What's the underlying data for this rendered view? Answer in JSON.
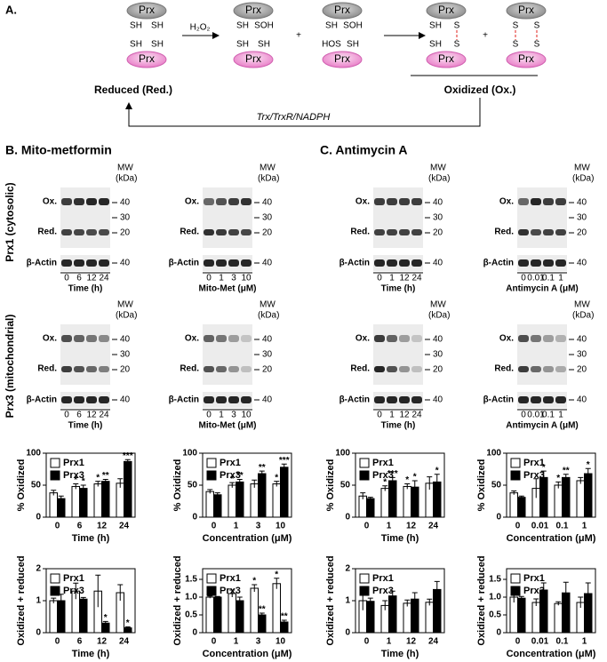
{
  "panel_a": {
    "label": "A.",
    "prx": "Prx",
    "sh": "SH",
    "soh": "SOH",
    "hos": "HOS",
    "s": "S",
    "plus": "+",
    "h2o2": "H₂O₂",
    "reduced": "Reduced (Red.)",
    "oxidized": "Oxidized (Ox.)",
    "recycling": "Trx/TrxR/NADPH"
  },
  "panel_b": {
    "title": "B. Mito-metformin"
  },
  "panel_c": {
    "title": "C. Antimycin A"
  },
  "row_labels": [
    "Prx1 (cytosolic)",
    "Prx3 (mitochondrial)"
  ],
  "blot_labels": {
    "mw": [
      "MW",
      "(kDa)"
    ],
    "ox": "Ox.",
    "red": "Red.",
    "actin": "β-Actin",
    "mw_markers": [
      "40",
      "30",
      "20",
      "40"
    ]
  },
  "blots": [
    {
      "lanes": [
        "0",
        "6",
        "12",
        "24"
      ],
      "xlabel": "Time (h)"
    },
    {
      "lanes": [
        "0",
        "1",
        "3",
        "10"
      ],
      "xlabel": "Mito-Met (μM)"
    },
    {
      "lanes": [
        "0",
        "1",
        "12",
        "24"
      ],
      "xlabel": "Time (h)"
    },
    {
      "lanes": [
        "0",
        "0.01",
        "0.1",
        "1"
      ],
      "xlabel": "Antimycin A (μM)"
    }
  ],
  "chart_data": [
    {
      "type": "bar",
      "ylabel": "% Oxidized",
      "xlabel": "Time (h)",
      "categories": [
        "0",
        "6",
        "12",
        "24"
      ],
      "ylim": [
        0,
        100
      ],
      "yticks": [
        0,
        50,
        100
      ],
      "series": [
        {
          "name": "Prx1",
          "color": "#ffffff",
          "values": [
            38,
            48,
            52,
            53
          ],
          "errors": [
            4,
            4,
            4,
            7
          ],
          "significance": [
            null,
            "*",
            "*",
            null
          ]
        },
        {
          "name": "Prx3",
          "color": "#000000",
          "values": [
            29,
            45,
            56,
            87
          ],
          "errors": [
            4,
            5,
            3,
            3
          ],
          "significance": [
            null,
            "*",
            "**",
            "***"
          ]
        }
      ]
    },
    {
      "type": "bar",
      "ylabel": "% Oxidized",
      "xlabel": "Concentration (μM)",
      "categories": [
        "0",
        "1",
        "3",
        "10"
      ],
      "ylim": [
        0,
        100
      ],
      "yticks": [
        0,
        50,
        100
      ],
      "series": [
        {
          "name": "Prx1",
          "color": "#ffffff",
          "values": [
            40,
            50,
            52,
            52
          ],
          "errors": [
            3,
            4,
            6,
            4
          ],
          "significance": [
            null,
            "*",
            null,
            "*"
          ]
        },
        {
          "name": "Prx3",
          "color": "#000000",
          "values": [
            35,
            55,
            68,
            78
          ],
          "errors": [
            3,
            4,
            4,
            5
          ],
          "significance": [
            null,
            "**",
            "**",
            "***"
          ]
        }
      ]
    },
    {
      "type": "bar",
      "ylabel": "Oxidized + reduced",
      "xlabel": "Time (h)",
      "categories": [
        "0",
        "6",
        "12",
        "24"
      ],
      "ylim": [
        0,
        2
      ],
      "yticks": [
        0,
        1,
        2
      ],
      "series": [
        {
          "name": "Prx1",
          "color": "#ffffff",
          "values": [
            1.0,
            1.3,
            1.3,
            1.25
          ],
          "errors": [
            0.08,
            0.25,
            0.5,
            0.25
          ],
          "significance": [
            null,
            null,
            null,
            null
          ]
        },
        {
          "name": "Prx3",
          "color": "#000000",
          "values": [
            1.0,
            1.05,
            0.3,
            0.15
          ],
          "errors": [
            0.2,
            0.05,
            0.05,
            0.03
          ],
          "significance": [
            null,
            null,
            "*",
            "*"
          ]
        }
      ]
    },
    {
      "type": "bar",
      "ylabel": "Oxidized + reduced",
      "xlabel": "Concentration (μM)",
      "categories": [
        "0",
        "1",
        "3",
        "10"
      ],
      "ylim": [
        0,
        1.8
      ],
      "yticks": [
        0,
        0.5,
        {
          "value": 1,
          "label": "1.0"
        },
        1.5
      ],
      "series": [
        {
          "name": "Prx1",
          "color": "#ffffff",
          "values": [
            1.0,
            1.1,
            1.25,
            1.38
          ],
          "errors": [
            0.03,
            0.1,
            0.1,
            0.15
          ],
          "significance": [
            null,
            null,
            "*",
            "*"
          ]
        },
        {
          "name": "Prx3",
          "color": "#000000",
          "values": [
            1.0,
            0.9,
            0.5,
            0.3
          ],
          "errors": [
            0.02,
            0.1,
            0.05,
            0.05
          ],
          "significance": [
            null,
            null,
            "**",
            "**"
          ]
        }
      ]
    },
    {
      "type": "bar",
      "ylabel": "% Oxidized",
      "xlabel": "Time (h)",
      "categories": [
        "0",
        "1",
        "12",
        "24"
      ],
      "ylim": [
        0,
        100
      ],
      "yticks": [
        0,
        50,
        100
      ],
      "series": [
        {
          "name": "Prx1",
          "color": "#ffffff",
          "values": [
            33,
            45,
            48,
            53
          ],
          "errors": [
            5,
            4,
            4,
            10
          ],
          "significance": [
            null,
            "*",
            "*",
            null
          ]
        },
        {
          "name": "Prx3",
          "color": "#000000",
          "values": [
            29,
            57,
            47,
            55
          ],
          "errors": [
            2,
            5,
            10,
            12
          ],
          "significance": [
            null,
            "***",
            "*",
            "*"
          ]
        }
      ]
    },
    {
      "type": "bar",
      "ylabel": "% Oxidized",
      "xlabel": "Concentration (μM)",
      "categories": [
        "0",
        "0.01",
        "0.1",
        "1"
      ],
      "ylim": [
        0,
        100
      ],
      "yticks": [
        0,
        50,
        100
      ],
      "series": [
        {
          "name": "Prx1",
          "color": "#ffffff",
          "values": [
            38,
            45,
            50,
            57
          ],
          "errors": [
            3,
            15,
            5,
            5
          ],
          "significance": [
            null,
            null,
            "*",
            null
          ]
        },
        {
          "name": "Prx3",
          "color": "#000000",
          "values": [
            31,
            62,
            62,
            68
          ],
          "errors": [
            2,
            10,
            5,
            8
          ],
          "significance": [
            null,
            "*",
            "**",
            "*"
          ]
        }
      ]
    },
    {
      "type": "bar",
      "ylabel": "Oxidized + reduced",
      "xlabel": "Time (h)",
      "categories": [
        "0",
        "1",
        "12",
        "24"
      ],
      "ylim": [
        0,
        2
      ],
      "yticks": [
        0,
        1,
        2
      ],
      "series": [
        {
          "name": "Prx1",
          "color": "#ffffff",
          "values": [
            1.0,
            0.85,
            0.92,
            0.95
          ],
          "errors": [
            0.3,
            0.15,
            0.1,
            0.1
          ],
          "significance": [
            null,
            null,
            null,
            null
          ]
        },
        {
          "name": "Prx3",
          "color": "#000000",
          "values": [
            0.98,
            1.15,
            1.05,
            1.35
          ],
          "errors": [
            0.1,
            0.15,
            0.2,
            0.25
          ],
          "significance": [
            null,
            null,
            null,
            null
          ]
        }
      ]
    },
    {
      "type": "bar",
      "ylabel": "Oxidized + reduced",
      "xlabel": "Concentration (μM)",
      "categories": [
        "0",
        "0.01",
        "0.1",
        "1"
      ],
      "ylim": [
        0,
        1.8
      ],
      "yticks": [
        0,
        0.5,
        {
          "value": 1,
          "label": "1.0"
        },
        1.5
      ],
      "series": [
        {
          "name": "Prx1",
          "color": "#ffffff",
          "values": [
            1.0,
            0.85,
            0.82,
            0.85
          ],
          "errors": [
            0.15,
            0.1,
            0.05,
            0.15
          ],
          "significance": [
            null,
            null,
            null,
            null
          ]
        },
        {
          "name": "Prx3",
          "color": "#000000",
          "values": [
            0.97,
            1.2,
            1.12,
            1.1
          ],
          "errors": [
            0.05,
            0.2,
            0.3,
            0.3
          ],
          "significance": [
            null,
            null,
            null,
            null
          ]
        }
      ]
    }
  ]
}
